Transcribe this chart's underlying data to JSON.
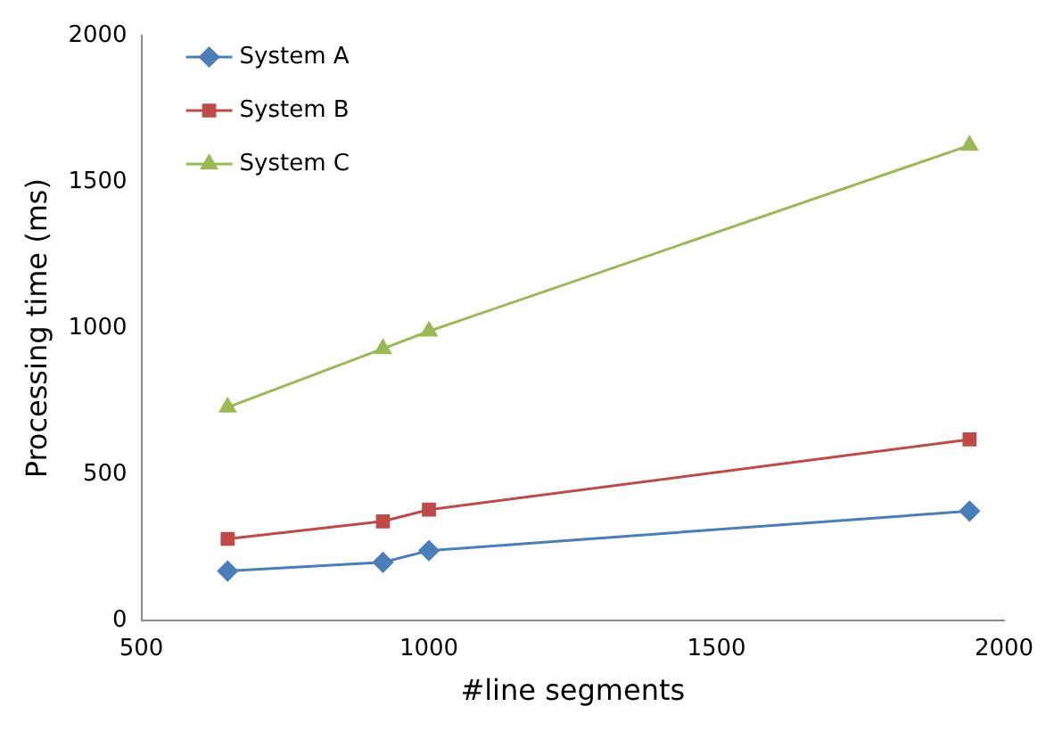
{
  "chart_data": {
    "type": "line",
    "xlabel": "#line segments",
    "ylabel": "Processing time (ms)",
    "x": [
      650,
      920,
      1000,
      1940
    ],
    "series": [
      {
        "name": "System A",
        "color": "#4a7ebb",
        "values": [
          170,
          200,
          240,
          375
        ],
        "marker": "diamond"
      },
      {
        "name": "System B",
        "color": "#be4b48",
        "values": [
          280,
          340,
          380,
          620
        ],
        "marker": "square"
      },
      {
        "name": "System C",
        "color": "#98b954",
        "values": [
          730,
          930,
          990,
          1625
        ],
        "marker": "triangle"
      }
    ],
    "xlim": [
      500,
      2000
    ],
    "xticks": [
      500,
      1000,
      1500,
      2000
    ],
    "ylim": [
      0,
      2000
    ],
    "yticks": [
      0,
      500,
      1000,
      1500,
      2000
    ],
    "grid": false,
    "legend": "top left",
    "line_style": "solid"
  }
}
